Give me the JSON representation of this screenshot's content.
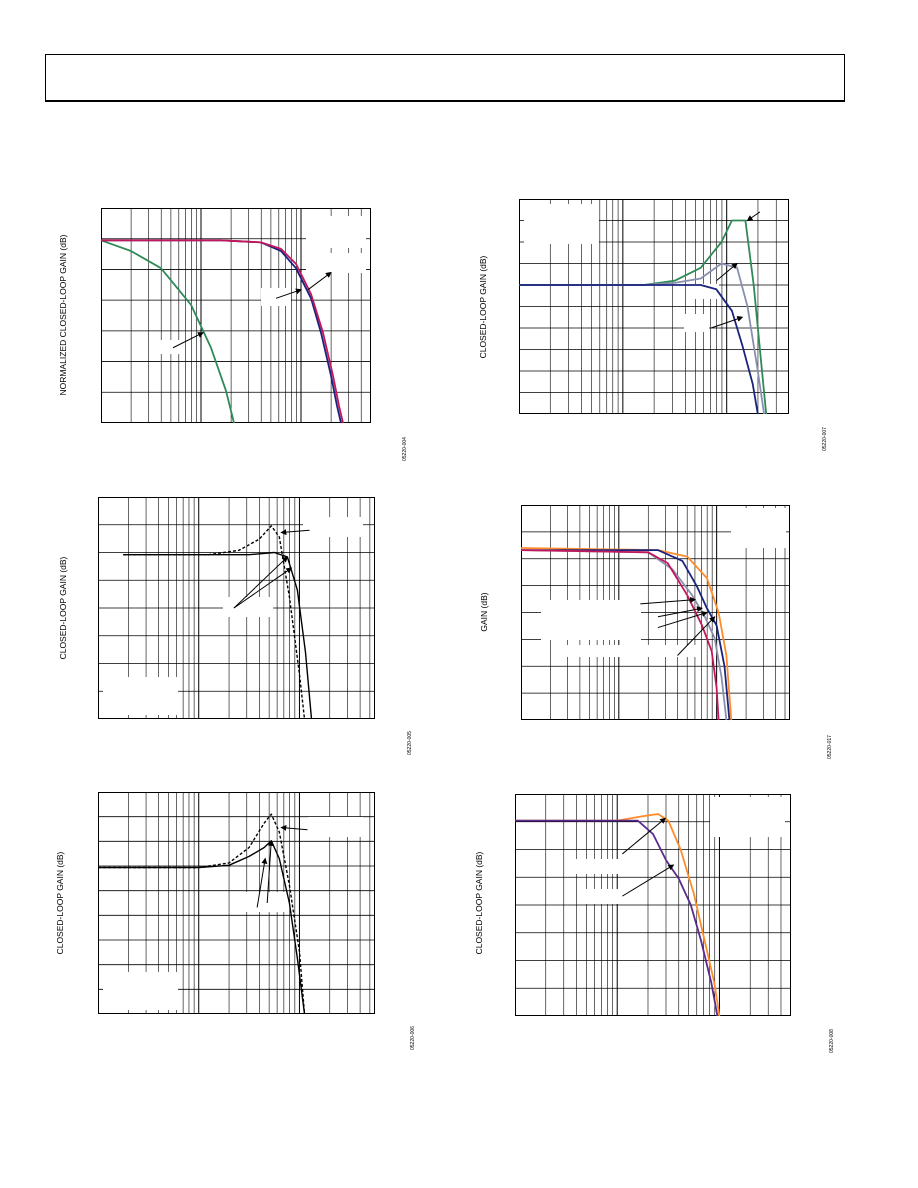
{
  "header": {
    "title": ""
  },
  "colors": {
    "green": "#2e8b57",
    "magenta": "#c2185b",
    "navy": "#1a237e",
    "gray": "#8a8fb0",
    "orange": "#ff8c2a",
    "purple": "#5a2a8c",
    "black": "#000000",
    "grid": "#000000"
  },
  "chart_data": [
    {
      "id": "fig-04",
      "type": "line",
      "ylabel": "NORMALIZED CLOSED-LOOP GAIN (dB)",
      "figure_code": "05220-004",
      "x_decades": 2.7,
      "y_divisions": 7,
      "series": [
        {
          "color": "green",
          "points": [
            [
              0,
              0.15
            ],
            [
              0.3,
              0.2
            ],
            [
              0.6,
              0.28
            ],
            [
              0.9,
              0.45
            ],
            [
              1.1,
              0.65
            ],
            [
              1.25,
              0.85
            ],
            [
              1.33,
              1.0
            ]
          ]
        },
        {
          "color": "navy",
          "points": [
            [
              0,
              0.15
            ],
            [
              1.2,
              0.15
            ],
            [
              1.6,
              0.16
            ],
            [
              1.8,
              0.2
            ],
            [
              1.95,
              0.28
            ],
            [
              2.1,
              0.42
            ],
            [
              2.2,
              0.58
            ],
            [
              2.3,
              0.78
            ],
            [
              2.36,
              0.92
            ],
            [
              2.4,
              1.0
            ]
          ]
        },
        {
          "color": "magenta",
          "points": [
            [
              0,
              0.15
            ],
            [
              1.2,
              0.15
            ],
            [
              1.6,
              0.16
            ],
            [
              1.8,
              0.19
            ],
            [
              1.95,
              0.26
            ],
            [
              2.1,
              0.4
            ],
            [
              2.22,
              0.58
            ],
            [
              2.32,
              0.78
            ],
            [
              2.38,
              0.92
            ],
            [
              2.42,
              1.0
            ]
          ]
        }
      ],
      "arrows": [
        {
          "from": [
            0.72,
            0.65
          ],
          "to": [
            1.02,
            0.58
          ]
        },
        {
          "from": [
            1.75,
            0.42
          ],
          "to": [
            2.0,
            0.38
          ]
        },
        {
          "from": [
            2.07,
            0.38
          ],
          "to": [
            2.3,
            0.3
          ]
        }
      ]
    },
    {
      "id": "fig-07",
      "type": "line",
      "ylabel": "CLOSED-LOOP GAIN (dB)",
      "figure_code": "05220-007",
      "x_decades": 2.6,
      "y_divisions": 10,
      "series": [
        {
          "color": "green",
          "points": [
            [
              0,
              0.4
            ],
            [
              1.2,
              0.4
            ],
            [
              1.5,
              0.38
            ],
            [
              1.75,
              0.32
            ],
            [
              1.95,
              0.2
            ],
            [
              2.05,
              0.1
            ],
            [
              2.18,
              0.1
            ],
            [
              2.26,
              0.4
            ],
            [
              2.34,
              0.8
            ],
            [
              2.38,
              1.0
            ]
          ]
        },
        {
          "color": "gray",
          "points": [
            [
              0,
              0.4
            ],
            [
              1.2,
              0.4
            ],
            [
              1.5,
              0.39
            ],
            [
              1.75,
              0.37
            ],
            [
              1.95,
              0.3
            ],
            [
              2.1,
              0.32
            ],
            [
              2.2,
              0.5
            ],
            [
              2.3,
              0.8
            ],
            [
              2.36,
              1.0
            ]
          ]
        },
        {
          "color": "navy",
          "points": [
            [
              0,
              0.4
            ],
            [
              1.2,
              0.4
            ],
            [
              1.5,
              0.4
            ],
            [
              1.75,
              0.4
            ],
            [
              1.9,
              0.42
            ],
            [
              2.05,
              0.52
            ],
            [
              2.15,
              0.68
            ],
            [
              2.25,
              0.86
            ],
            [
              2.3,
              1.0
            ]
          ]
        }
      ],
      "arrows": [
        {
          "from": [
            2.32,
            0.06
          ],
          "to": [
            2.2,
            0.1
          ]
        },
        {
          "from": [
            1.9,
            0.38
          ],
          "to": [
            2.1,
            0.3
          ]
        },
        {
          "from": [
            1.85,
            0.6
          ],
          "to": [
            2.15,
            0.55
          ]
        }
      ]
    },
    {
      "id": "fig-05",
      "type": "line",
      "ylabel": "CLOSED-LOOP GAIN (dB)",
      "figure_code": "05220-005",
      "x_decades": 2.75,
      "y_divisions": 8,
      "series": [
        {
          "color": "black",
          "dashed": true,
          "points": [
            [
              0.25,
              0.26
            ],
            [
              1.1,
              0.26
            ],
            [
              1.4,
              0.24
            ],
            [
              1.6,
              0.19
            ],
            [
              1.72,
              0.13
            ],
            [
              1.8,
              0.18
            ],
            [
              1.9,
              0.45
            ],
            [
              2.0,
              0.8
            ],
            [
              2.05,
              1.0
            ]
          ]
        },
        {
          "color": "black",
          "dashed": false,
          "points": [
            [
              0.25,
              0.26
            ],
            [
              1.1,
              0.26
            ],
            [
              1.5,
              0.26
            ],
            [
              1.75,
              0.25
            ],
            [
              1.88,
              0.27
            ],
            [
              1.98,
              0.42
            ],
            [
              2.06,
              0.7
            ],
            [
              2.12,
              1.0
            ]
          ]
        }
      ],
      "arrows": [
        {
          "from": [
            2.1,
            0.15
          ],
          "to": [
            1.82,
            0.16
          ]
        },
        {
          "from": [
            1.35,
            0.5
          ],
          "to": [
            1.92,
            0.32
          ]
        },
        {
          "from": [
            1.35,
            0.5
          ],
          "to": [
            1.88,
            0.27
          ]
        }
      ]
    },
    {
      "id": "fig-17",
      "type": "line",
      "ylabel": "GAIN (dB)",
      "figure_code": "05220-017",
      "x_decades": 2.75,
      "y_divisions": 8,
      "series": [
        {
          "color": "orange",
          "points": [
            [
              0,
              0.2
            ],
            [
              1.4,
              0.21
            ],
            [
              1.7,
              0.24
            ],
            [
              1.9,
              0.34
            ],
            [
              2.02,
              0.5
            ],
            [
              2.1,
              0.7
            ],
            [
              2.15,
              1.0
            ]
          ]
        },
        {
          "color": "navy",
          "points": [
            [
              0,
              0.21
            ],
            [
              1.4,
              0.21
            ],
            [
              1.65,
              0.26
            ],
            [
              1.8,
              0.38
            ],
            [
              1.9,
              0.48
            ],
            [
              2.0,
              0.56
            ],
            [
              2.08,
              0.75
            ],
            [
              2.13,
              1.0
            ]
          ]
        },
        {
          "color": "gray",
          "points": [
            [
              0,
              0.21
            ],
            [
              1.3,
              0.22
            ],
            [
              1.55,
              0.3
            ],
            [
              1.75,
              0.42
            ],
            [
              1.88,
              0.52
            ],
            [
              1.98,
              0.62
            ],
            [
              2.05,
              0.8
            ],
            [
              2.1,
              1.0
            ]
          ]
        },
        {
          "color": "magenta",
          "points": [
            [
              0,
              0.21
            ],
            [
              1.3,
              0.22
            ],
            [
              1.5,
              0.27
            ],
            [
              1.7,
              0.42
            ],
            [
              1.85,
              0.56
            ],
            [
              1.95,
              0.68
            ],
            [
              2.0,
              0.85
            ],
            [
              2.02,
              1.0
            ]
          ]
        }
      ],
      "arrows": [
        {
          "from": [
            1.22,
            0.46
          ],
          "to": [
            1.78,
            0.44
          ]
        },
        {
          "from": [
            1.4,
            0.52
          ],
          "to": [
            1.85,
            0.48
          ]
        },
        {
          "from": [
            1.4,
            0.57
          ],
          "to": [
            1.9,
            0.5
          ]
        },
        {
          "from": [
            1.6,
            0.7
          ],
          "to": [
            1.98,
            0.52
          ]
        }
      ]
    },
    {
      "id": "fig-06",
      "type": "line",
      "ylabel": "CLOSED-LOOP GAIN (dB)",
      "figure_code": "05220-006",
      "x_decades": 2.75,
      "y_divisions": 9,
      "series": [
        {
          "color": "black",
          "dashed": true,
          "points": [
            [
              0.0,
              0.34
            ],
            [
              1.0,
              0.34
            ],
            [
              1.3,
              0.32
            ],
            [
              1.5,
              0.25
            ],
            [
              1.65,
              0.14
            ],
            [
              1.72,
              0.1
            ],
            [
              1.8,
              0.18
            ],
            [
              1.9,
              0.42
            ],
            [
              2.0,
              0.72
            ],
            [
              2.05,
              1.0
            ]
          ]
        },
        {
          "color": "black",
          "dashed": false,
          "points": [
            [
              0.0,
              0.34
            ],
            [
              1.0,
              0.34
            ],
            [
              1.3,
              0.33
            ],
            [
              1.5,
              0.29
            ],
            [
              1.65,
              0.25
            ],
            [
              1.72,
              0.22
            ],
            [
              1.8,
              0.3
            ],
            [
              1.9,
              0.5
            ],
            [
              1.98,
              0.75
            ],
            [
              2.05,
              1.0
            ]
          ]
        }
      ],
      "arrows": [
        {
          "from": [
            2.08,
            0.17
          ],
          "to": [
            1.82,
            0.16
          ]
        },
        {
          "from": [
            1.58,
            0.52
          ],
          "to": [
            1.66,
            0.3
          ]
        },
        {
          "from": [
            1.68,
            0.5
          ],
          "to": [
            1.72,
            0.22
          ]
        }
      ]
    },
    {
      "id": "fig-08",
      "type": "line",
      "ylabel": "CLOSED-LOOP GAIN (dB)",
      "figure_code": "05220-008",
      "x_decades": 2.7,
      "y_divisions": 8,
      "series": [
        {
          "color": "orange",
          "points": [
            [
              0,
              0.12
            ],
            [
              0.5,
              0.12
            ],
            [
              1.0,
              0.12
            ],
            [
              1.25,
              0.1
            ],
            [
              1.4,
              0.09
            ],
            [
              1.5,
              0.12
            ],
            [
              1.62,
              0.25
            ],
            [
              1.75,
              0.45
            ],
            [
              1.85,
              0.65
            ],
            [
              1.95,
              0.85
            ],
            [
              2.0,
              1.0
            ]
          ]
        },
        {
          "color": "purple",
          "points": [
            [
              0,
              0.12
            ],
            [
              0.5,
              0.12
            ],
            [
              1.0,
              0.12
            ],
            [
              1.2,
              0.12
            ],
            [
              1.35,
              0.18
            ],
            [
              1.48,
              0.3
            ],
            [
              1.6,
              0.38
            ],
            [
              1.72,
              0.5
            ],
            [
              1.82,
              0.66
            ],
            [
              1.92,
              0.85
            ],
            [
              1.98,
              1.0
            ]
          ]
        }
      ],
      "arrows": [
        {
          "from": [
            1.05,
            0.27
          ],
          "to": [
            1.47,
            0.11
          ]
        },
        {
          "from": [
            1.05,
            0.46
          ],
          "to": [
            1.55,
            0.32
          ]
        }
      ]
    }
  ]
}
